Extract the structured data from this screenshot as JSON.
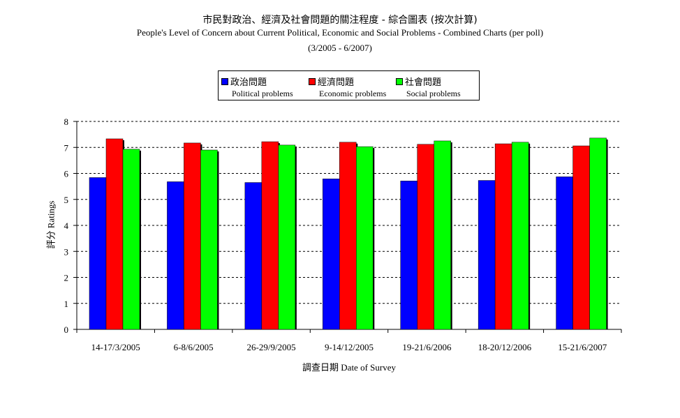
{
  "chart_data": {
    "type": "bar",
    "title_zh": "市民對政治、經濟及社會問題的關注程度 - 綜合圖表 (按次計算)",
    "title_en": "People's Level of Concern about Current Political, Economic and Social Problems - Combined Charts (per poll)",
    "period": "(3/2005 - 6/2007)",
    "xlabel_zh": "調查日期",
    "xlabel_en": "Date of Survey",
    "ylabel_zh": "評分",
    "ylabel_en": "Ratings",
    "ylim": [
      0,
      8
    ],
    "yticks": [
      "0",
      "1",
      "2",
      "3",
      "4",
      "5",
      "6",
      "7",
      "8"
    ],
    "grid": "horizontal dashed",
    "legend_position": "top-center",
    "categories": [
      "14-17/3/2005",
      "6-8/6/2005",
      "26-29/9/2005",
      "9-14/12/2005",
      "19-21/6/2006",
      "18-20/12/2006",
      "15-21/6/2007"
    ],
    "series": [
      {
        "name_zh": "政治問題",
        "name_en": "Political problems",
        "color": "#0000ff",
        "values": [
          5.84,
          5.68,
          5.65,
          5.79,
          5.71,
          5.73,
          5.87
        ]
      },
      {
        "name_zh": "經濟問題",
        "name_en": "Economic problems",
        "color": "#ff0000",
        "values": [
          7.33,
          7.17,
          7.22,
          7.2,
          7.12,
          7.14,
          7.06
        ]
      },
      {
        "name_zh": "社會問題",
        "name_en": "Social problems",
        "color": "#00ff00",
        "values": [
          6.93,
          6.9,
          7.09,
          7.03,
          7.25,
          7.2,
          7.36
        ]
      }
    ]
  }
}
